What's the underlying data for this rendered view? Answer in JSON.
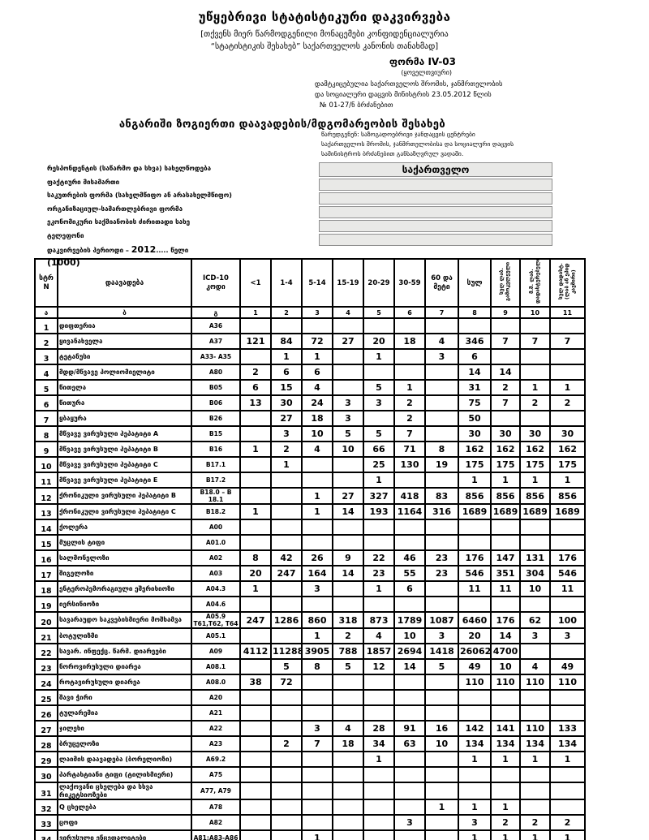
{
  "header": {
    "title": "უწყებრივი სტატისტიკური დაკვირვება",
    "confidential_line1": "[თქვენს მიერ წარმოდგენილი მონაცემები კონფიდენციალურია",
    "confidential_line2": "“სტატისტიკის შესახებ” საქართველოს კანონის თანახმად]",
    "form_label": "ფორმა IV-03",
    "periodicity": "(ყოველთვიური)",
    "approved_line1": "დამტკიცებულია საქართველოს შრომის, ჯანმრთელობის",
    "approved_line2": "და სოციალური დაცვის მინისტრის 23.05.2012 წლის",
    "approved_line3": "№ 01-27/ნ ბრძანებით",
    "report_title": "ანგარიში ზოგიერთი დაავადების/მდგომარეობის შესახებ",
    "submit_note_line1": "წარუდგენენ: საზოგადოებრივი ჯანდაცვის ცენტრები",
    "submit_note_line2": "საქართველოს შრომის, ჯანმრთელობისა და სოციალური დაცვის",
    "submit_note_line3": "სამინისტროს ბრძანებით განსაზღვრულ ვადაში."
  },
  "region_box": {
    "title": "საქართველო",
    "empty_rows": 5
  },
  "left_panel": {
    "fields": [
      "რესპონდენტის (საწარმო და სხვა) სახელწოდება",
      "ფაქტიური მისამართი",
      "საკუთრების ფორმა (სახელმწიფო ან არასახელმწიფო)",
      "ორგანიზაციულ-სამართლებრივი ფორმა",
      "ეკონომიკური საქმიანობის ძირითადი სახე",
      "ტელეფონი"
    ],
    "period_label": "დაკვირვების პერიოდი – ",
    "period_year": "2012",
    "period_tail": ".....    წელი",
    "code": "(1000)"
  },
  "table": {
    "col_headers": [
      "სტრ N",
      "დაავადება",
      "ICD-10 კოდი",
      "<1",
      "1-4",
      "5-14",
      "15-19",
      "20-29",
      "30-59",
      "60 და მეტი",
      "სულ",
      "სულ ლაბ. გამოკვლეული",
      "მ.შ. ლაბ. დადასტურებული",
      "სულ დადასტ. (ლაბ ან ეპიდ კავშირი)"
    ],
    "subheaders": [
      "ა",
      "ბ",
      "გ",
      "1",
      "2",
      "3",
      "4",
      "5",
      "6",
      "7",
      "8",
      "9",
      "10",
      "11"
    ],
    "rows": [
      {
        "n": 1,
        "disease": "დიფთერია",
        "icd": "A36",
        "values": [
          "",
          "",
          "",
          "",
          "",
          "",
          "",
          "",
          "",
          "",
          ""
        ]
      },
      {
        "n": 2,
        "disease": "ყივანახველა",
        "icd": "A37",
        "values": [
          "121",
          "84",
          "72",
          "27",
          "20",
          "18",
          "4",
          "346",
          "7",
          "7",
          "7"
        ]
      },
      {
        "n": 3,
        "disease": "ტეტანუსი",
        "icd": "A33- A35",
        "values": [
          "",
          "1",
          "1",
          "",
          "1",
          "",
          "3",
          "6",
          "",
          "",
          ""
        ]
      },
      {
        "n": 4,
        "disease": "მდდ/მწვავე პოლიომიელიტი",
        "icd": "A80",
        "values": [
          "2",
          "6",
          "6",
          "",
          "",
          "",
          "",
          "14",
          "14",
          "",
          ""
        ]
      },
      {
        "n": 5,
        "disease": "წითელა",
        "icd": "B05",
        "values": [
          "6",
          "15",
          "4",
          "",
          "5",
          "1",
          "",
          "31",
          "2",
          "1",
          "1"
        ]
      },
      {
        "n": 6,
        "disease": "წითურა",
        "icd": "B06",
        "values": [
          "13",
          "30",
          "24",
          "3",
          "3",
          "2",
          "",
          "75",
          "7",
          "2",
          "2"
        ]
      },
      {
        "n": 7,
        "disease": "ყბაყურა",
        "icd": "B26",
        "values": [
          "",
          "27",
          "18",
          "3",
          "",
          "2",
          "",
          "50",
          "",
          "",
          ""
        ]
      },
      {
        "n": 8,
        "disease": "მწვავე ვირუსული ჰეპატიტი A",
        "icd": "B15",
        "values": [
          "",
          "3",
          "10",
          "5",
          "5",
          "7",
          "",
          "30",
          "30",
          "30",
          "30"
        ]
      },
      {
        "n": 9,
        "disease": "მწვავე ვირუსული ჰეპატიტი B",
        "icd": "B16",
        "values": [
          "1",
          "2",
          "4",
          "10",
          "66",
          "71",
          "8",
          "162",
          "162",
          "162",
          "162"
        ]
      },
      {
        "n": 10,
        "disease": "მწვავე ვირუსული ჰეპატიტი C",
        "icd": "B17.1",
        "values": [
          "",
          "1",
          "",
          "",
          "25",
          "130",
          "19",
          "175",
          "175",
          "175",
          "175"
        ]
      },
      {
        "n": 11,
        "disease": "მწვავე ვირუსული ჰეპატიტი E",
        "icd": "B17.2",
        "values": [
          "",
          "",
          "",
          "",
          "1",
          "",
          "",
          "1",
          "1",
          "1",
          "1"
        ]
      },
      {
        "n": 12,
        "disease": "ქრონიკული ვირუსული ჰეპატიტი B",
        "icd": "B18.0 – B 18.1",
        "values": [
          "",
          "",
          "1",
          "27",
          "327",
          "418",
          "83",
          "856",
          "856",
          "856",
          "856"
        ]
      },
      {
        "n": 13,
        "disease": "ქრონიკული ვირუსული ჰეპატიტი C",
        "icd": "B18.2",
        "values": [
          "1",
          "",
          "1",
          "14",
          "193",
          "1164",
          "316",
          "1689",
          "1689",
          "1689",
          "1689"
        ]
      },
      {
        "n": 14,
        "disease": "ქოლერა",
        "icd": "A00",
        "values": [
          "",
          "",
          "",
          "",
          "",
          "",
          "",
          "",
          "",
          "",
          ""
        ]
      },
      {
        "n": 15,
        "disease": "მუცლის ტიფი",
        "icd": "A01.0",
        "values": [
          "",
          "",
          "",
          "",
          "",
          "",
          "",
          "",
          "",
          "",
          ""
        ]
      },
      {
        "n": 16,
        "disease": "სალმონელოზი",
        "icd": "A02",
        "values": [
          "8",
          "42",
          "26",
          "9",
          "22",
          "46",
          "23",
          "176",
          "147",
          "131",
          "176"
        ]
      },
      {
        "n": 17,
        "disease": "შიგელოზი",
        "icd": "A03",
        "values": [
          "20",
          "247",
          "164",
          "14",
          "23",
          "55",
          "23",
          "546",
          "351",
          "304",
          "546"
        ]
      },
      {
        "n": 18,
        "disease": "ენტეროჰემორაგიული ეშერიხიოზი",
        "icd": "A04.3",
        "values": [
          "1",
          "",
          "3",
          "",
          "1",
          "6",
          "",
          "11",
          "11",
          "10",
          "11"
        ]
      },
      {
        "n": 19,
        "disease": "იერსინიოზი",
        "icd": "A04.6",
        "values": [
          "",
          "",
          "",
          "",
          "",
          "",
          "",
          "",
          "",
          "",
          ""
        ]
      },
      {
        "n": 20,
        "disease": "სავარაუდო საკვებისმიერი მოშხამვა",
        "icd": "A05.9 T61,T62, T64",
        "values": [
          "247",
          "1286",
          "860",
          "318",
          "873",
          "1789",
          "1087",
          "6460",
          "176",
          "62",
          "100"
        ]
      },
      {
        "n": 21,
        "disease": "ბოტულიზმი",
        "icd": "A05.1",
        "values": [
          "",
          "",
          "1",
          "2",
          "4",
          "10",
          "3",
          "20",
          "14",
          "3",
          "3"
        ]
      },
      {
        "n": 22,
        "disease": "სავარ. ინფექც. წარმ. დიარეები",
        "icd": "A09",
        "values": [
          "4112",
          "11288",
          "3905",
          "788",
          "1857",
          "2694",
          "1418",
          "26062",
          "4700",
          "",
          ""
        ]
      },
      {
        "n": 23,
        "disease": "ნოროვირუსული დიარეა",
        "icd": "A08.1",
        "values": [
          "",
          "5",
          "8",
          "5",
          "12",
          "14",
          "5",
          "49",
          "10",
          "4",
          "49"
        ]
      },
      {
        "n": 24,
        "disease": "როტავირუსული დიარეა",
        "icd": "A08.0",
        "values": [
          "38",
          "72",
          "",
          "",
          "",
          "",
          "",
          "110",
          "110",
          "110",
          "110"
        ]
      },
      {
        "n": 25,
        "disease": "შავი ჭირი",
        "icd": "A20",
        "values": [
          "",
          "",
          "",
          "",
          "",
          "",
          "",
          "",
          "",
          "",
          ""
        ]
      },
      {
        "n": 26,
        "disease": "ტულარემია",
        "icd": "A21",
        "values": [
          "",
          "",
          "",
          "",
          "",
          "",
          "",
          "",
          "",
          "",
          ""
        ]
      },
      {
        "n": 27,
        "disease": "ჯილეხი",
        "icd": "A22",
        "values": [
          "",
          "",
          "3",
          "4",
          "28",
          "91",
          "16",
          "142",
          "141",
          "110",
          "133"
        ]
      },
      {
        "n": 28,
        "disease": "ბრუცელოზი",
        "icd": "A23",
        "values": [
          "",
          "2",
          "7",
          "18",
          "34",
          "63",
          "10",
          "134",
          "134",
          "134",
          "134"
        ]
      },
      {
        "n": 29,
        "disease": "ლაიმის დაავადება (ბორელიოზი)",
        "icd": "A69.2",
        "values": [
          "",
          "",
          "",
          "",
          "1",
          "",
          "",
          "1",
          "1",
          "1",
          "1"
        ]
      },
      {
        "n": 30,
        "disease": "პარტახტიანი ტიფი (ტილისმიერი)",
        "icd": "A75",
        "values": [
          "",
          "",
          "",
          "",
          "",
          "",
          "",
          "",
          "",
          "",
          ""
        ]
      },
      {
        "n": 31,
        "disease": "ლაქოვანი ცხელება და სხვა რიკეტსიოზები",
        "icd": "A77, A79",
        "values": [
          "",
          "",
          "",
          "",
          "",
          "",
          "",
          "",
          "",
          "",
          ""
        ]
      },
      {
        "n": 32,
        "disease": "Q ცხელება",
        "icd": "A78",
        "values": [
          "",
          "",
          "",
          "",
          "",
          "",
          "1",
          "1",
          "1",
          "",
          ""
        ]
      },
      {
        "n": 33,
        "disease": "ცოფი",
        "icd": "A82",
        "values": [
          "",
          "",
          "",
          "",
          "",
          "3",
          "",
          "3",
          "2",
          "2",
          "2"
        ]
      },
      {
        "n": 34,
        "disease": "ვირუსული ენცეფალიტები",
        "icd": "A81;A83-A86",
        "values": [
          "",
          "",
          "1",
          "",
          "",
          "",
          "",
          "1",
          "1",
          "1",
          "1"
        ]
      }
    ]
  }
}
